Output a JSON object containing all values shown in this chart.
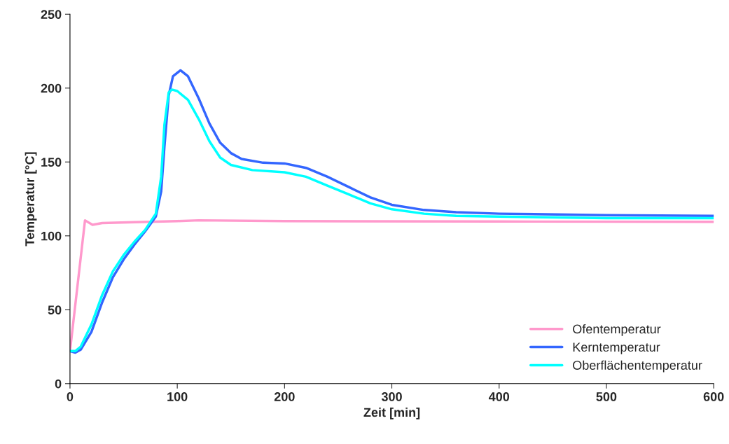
{
  "chart_data": {
    "type": "line",
    "xlabel": "Zeit [min]",
    "ylabel": "Temperatur [°C]",
    "xlim": [
      0,
      600
    ],
    "xticks": [
      0,
      100,
      200,
      300,
      400,
      500,
      600
    ],
    "ylim": [
      0,
      250
    ],
    "yticks": [
      0,
      50,
      100,
      150,
      200,
      250
    ],
    "grid": false,
    "legend": "bottom right",
    "marker": "none",
    "line_style": "solid",
    "series": [
      {
        "name": "Ofentemperatur",
        "color": "#ff99cc",
        "x": [
          0,
          14,
          21,
          30,
          60,
          100,
          120,
          200,
          400,
          600
        ],
        "values": [
          22,
          110.5,
          107.5,
          108.7,
          109.3,
          110,
          110.5,
          110,
          109.7,
          109.5
        ]
      },
      {
        "name": "Kerntemperatur",
        "color": "#3366ff",
        "x": [
          0,
          5,
          10,
          20,
          30,
          40,
          50,
          60,
          70,
          80,
          85,
          88,
          92,
          96,
          103,
          110,
          120,
          130,
          140,
          150,
          160,
          180,
          200,
          220,
          240,
          260,
          280,
          300,
          330,
          360,
          400,
          500,
          600
        ],
        "values": [
          22,
          21,
          23,
          35,
          55,
          72,
          84,
          94,
          103,
          113,
          130,
          160,
          195,
          208,
          212,
          208,
          193,
          176,
          163,
          156,
          152,
          149.5,
          149,
          146,
          140,
          133,
          126,
          121,
          117.5,
          116,
          115,
          114,
          113.5
        ]
      },
      {
        "name": "Oberflächentemperatur",
        "color": "#00ffff",
        "x": [
          0,
          5,
          10,
          20,
          30,
          40,
          50,
          60,
          70,
          80,
          85,
          88,
          92,
          95,
          100,
          110,
          120,
          130,
          140,
          150,
          170,
          200,
          220,
          240,
          260,
          280,
          300,
          330,
          360,
          400,
          500,
          600
        ],
        "values": [
          22,
          22,
          25,
          40,
          60,
          76,
          87,
          96,
          104,
          115,
          140,
          175,
          197,
          199,
          198,
          192,
          179,
          164,
          153,
          148,
          144.5,
          143,
          140,
          134,
          128,
          122,
          118,
          115,
          113.5,
          113,
          112,
          112
        ]
      }
    ]
  }
}
